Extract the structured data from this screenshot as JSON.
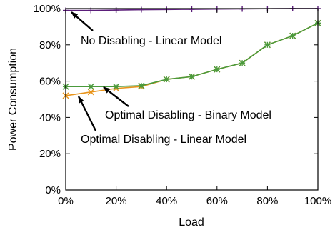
{
  "chart_data": {
    "type": "line",
    "title": "",
    "xlabel": "Load",
    "ylabel": "Power Consumption",
    "xlim": [
      0,
      100
    ],
    "ylim": [
      0,
      100
    ],
    "x_ticks": [
      "0%",
      "20%",
      "40%",
      "60%",
      "80%",
      "100%"
    ],
    "y_ticks": [
      "0%",
      "20%",
      "40%",
      "60%",
      "80%",
      "100%"
    ],
    "x": [
      0,
      10,
      20,
      30,
      40,
      50,
      60,
      70,
      80,
      90,
      100
    ],
    "grid": false,
    "series": [
      {
        "name": "No Disabling - Linear Model",
        "color": "#5b1e7a",
        "marker": "plus",
        "values": [
          99,
          99,
          99.2,
          99.4,
          99.5,
          99.6,
          99.7,
          99.8,
          99.9,
          100,
          100
        ]
      },
      {
        "name": "Optimal Disabling - Binary Model",
        "color": "#4a9a3c",
        "marker": "star",
        "values": [
          57,
          57,
          57,
          57.5,
          61,
          62.5,
          66.5,
          70,
          80,
          85,
          92
        ]
      },
      {
        "name": "Optimal Disabling - Linear Model",
        "color": "#e8941a",
        "marker": "x",
        "values": [
          52,
          54,
          56,
          57,
          61,
          62.5,
          66.5,
          70,
          80,
          85,
          92
        ]
      }
    ],
    "annotations": [
      {
        "text": "No Disabling - Linear Model",
        "series": 0
      },
      {
        "text": "Optimal Disabling - Binary Model",
        "series": 1
      },
      {
        "text": "Optimal Disabling - Linear Model",
        "series": 2
      }
    ]
  }
}
